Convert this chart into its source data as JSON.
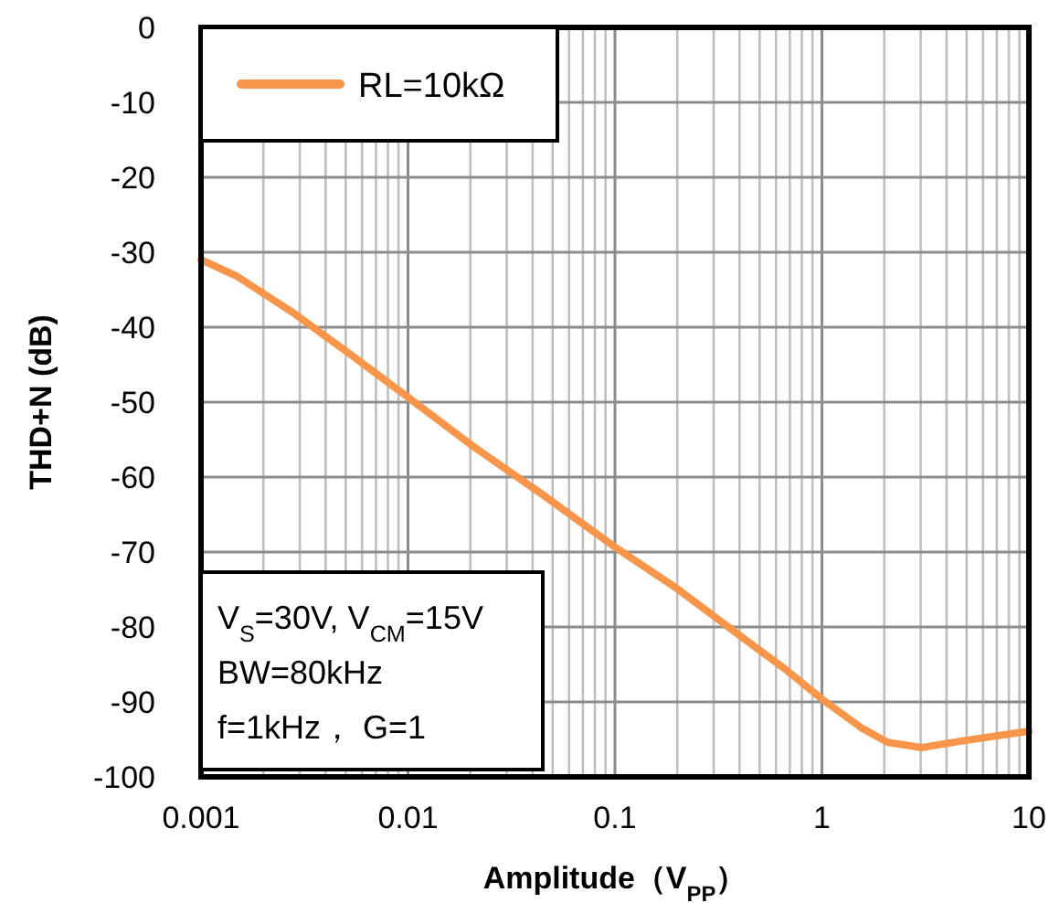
{
  "chart_data": {
    "type": "line",
    "xlabel": "Amplitude（V$_{PP}$）",
    "ylabel": "THD+N (dB)",
    "log": "x",
    "xlim": [
      0.001,
      10
    ],
    "xticks": [
      0.001,
      0.01,
      0.1,
      1,
      10
    ],
    "ylim": [
      -100,
      0
    ],
    "yticks": [
      -100,
      -90,
      -80,
      -70,
      -60,
      -50,
      -40,
      -30,
      -20,
      -10,
      0
    ],
    "grid": true,
    "legend": "top left",
    "marker": "none",
    "line_style": "solid",
    "annotations": [
      "V$_{S}$=30V, V$_{CM}$=15V",
      "BW=80kHz",
      "f=1kHz， G=1"
    ],
    "x": [
      0.001,
      0.00149,
      0.00273,
      0.00538,
      0.00984,
      0.0209,
      0.0445,
      0.102,
      0.2,
      0.427,
      0.67,
      1.02,
      1.54,
      2.08,
      3.03,
      4.77,
      10
    ],
    "series": [
      {
        "name": "RL=10kΩ",
        "color": "#f7964a",
        "values": [
          -31,
          -33.2,
          -37.9,
          -43.8,
          -49.2,
          -56,
          -62.3,
          -69.5,
          -74.9,
          -81.7,
          -85.7,
          -89.8,
          -93.4,
          -95.4,
          -96.1,
          -95.2,
          -93.9
        ]
      }
    ]
  }
}
